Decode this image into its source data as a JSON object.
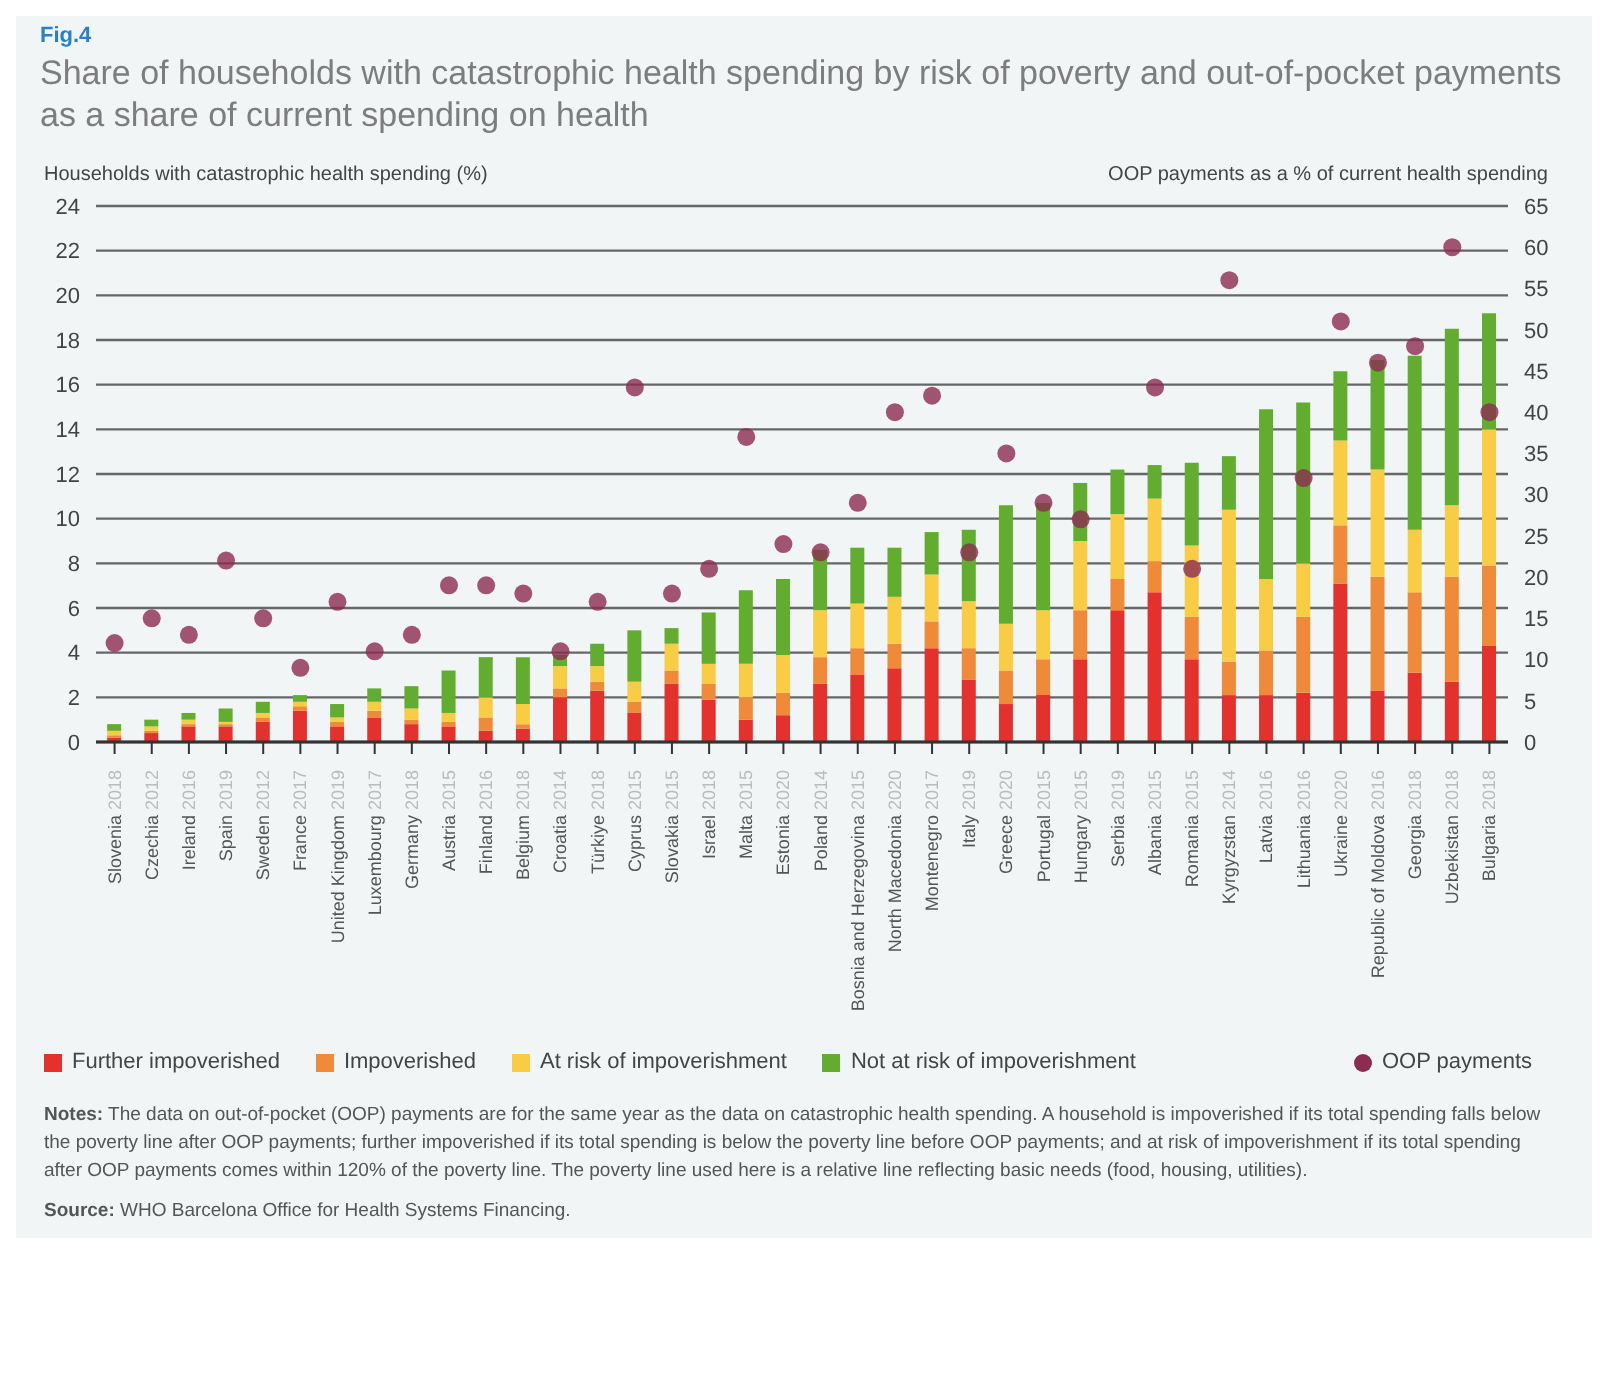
{
  "chart_data": {
    "type": "bar",
    "subtitle": "Fig.4",
    "title": "Share of households with catastrophic health spending by risk of poverty and out-of-pocket payments as a share of current spending on health",
    "ylabel": "Households with catastrophic health spending (%)",
    "y2label": "OOP payments as a % of current health spending",
    "categories": [
      "Slovenia 2018",
      "Czechia 2012",
      "Ireland 2016",
      "Spain 2019",
      "Sweden 2012",
      "France 2017",
      "United Kingdom 2019",
      "Luxembourg 2017",
      "Germany 2018",
      "Austria 2015",
      "Finland 2016",
      "Belgium 2018",
      "Croatia 2014",
      "Türkiye 2018",
      "Cyprus 2015",
      "Slovakia 2015",
      "Israel 2018",
      "Malta 2015",
      "Estonia 2020",
      "Poland 2014",
      "Bosnia and Herzegovina 2015",
      "North Macedonia 2020",
      "Montenegro 2017",
      "Italy 2019",
      "Greece 2020",
      "Portugal 2015",
      "Hungary 2015",
      "Serbia 2019",
      "Albania 2015",
      "Romania 2015",
      "Kyrgyzstan 2014",
      "Latvia 2016",
      "Lithuania 2016",
      "Ukraine 2020",
      "Republic of Moldova 2016",
      "Georgia 2018",
      "Uzbekistan 2018",
      "Bulgaria 2018"
    ],
    "stacked": true,
    "series": [
      {
        "name": "Further impoverished",
        "color": "#e3312d",
        "values": [
          0.2,
          0.4,
          0.7,
          0.7,
          0.9,
          1.4,
          0.7,
          1.1,
          0.8,
          0.7,
          0.5,
          0.6,
          2.0,
          2.3,
          1.3,
          2.6,
          1.9,
          1.0,
          1.2,
          2.6,
          3.0,
          3.3,
          4.2,
          2.8,
          1.7,
          2.1,
          3.7,
          5.9,
          6.7,
          3.7,
          2.1,
          2.1,
          2.2,
          7.1,
          2.3,
          3.1,
          2.7,
          4.3
        ]
      },
      {
        "name": "Impoverished",
        "color": "#ef8a3a",
        "values": [
          0.1,
          0.1,
          0.1,
          0.1,
          0.2,
          0.2,
          0.2,
          0.3,
          0.2,
          0.2,
          0.6,
          0.2,
          0.4,
          0.4,
          0.5,
          0.6,
          0.7,
          1.0,
          1.0,
          1.2,
          1.2,
          1.1,
          1.2,
          1.4,
          1.5,
          1.6,
          2.2,
          1.4,
          1.4,
          1.9,
          1.5,
          2.0,
          3.4,
          2.6,
          5.1,
          3.6,
          4.7,
          3.6
        ]
      },
      {
        "name": "At risk of impoverishment",
        "color": "#f8cd45",
        "values": [
          0.2,
          0.2,
          0.2,
          0.1,
          0.2,
          0.2,
          0.2,
          0.4,
          0.5,
          0.4,
          0.9,
          0.9,
          1.0,
          0.7,
          0.9,
          1.2,
          0.9,
          1.5,
          1.7,
          2.1,
          2.0,
          2.1,
          2.1,
          2.1,
          2.1,
          2.2,
          3.1,
          2.9,
          2.8,
          3.2,
          6.8,
          3.2,
          2.4,
          3.8,
          4.8,
          2.8,
          3.2,
          6.1
        ]
      },
      {
        "name": "Not at risk of impoverishment",
        "color": "#62ad2f",
        "values": [
          0.3,
          0.3,
          0.3,
          0.6,
          0.5,
          0.3,
          0.6,
          0.6,
          1.0,
          1.9,
          1.8,
          2.1,
          0.5,
          1.0,
          2.3,
          0.7,
          2.3,
          3.3,
          3.4,
          2.7,
          2.5,
          2.2,
          1.9,
          3.2,
          5.3,
          4.8,
          2.6,
          2.0,
          1.5,
          3.7,
          2.4,
          7.6,
          7.2,
          3.1,
          4.9,
          7.8,
          7.9,
          5.2
        ]
      },
      {
        "name": "OOP payments",
        "type": "scatter",
        "axis": "y2",
        "color": "#8c2c50",
        "values": [
          12,
          15,
          13,
          22,
          15,
          9,
          17,
          11,
          13,
          19,
          19,
          18,
          11,
          17,
          43,
          18,
          21,
          37,
          24,
          23,
          29,
          40,
          42,
          23,
          35,
          29,
          27,
          null,
          43,
          21,
          56,
          null,
          32,
          51,
          46,
          48,
          60,
          40
        ]
      }
    ],
    "ylim": [
      0,
      24
    ],
    "yticks": [
      0,
      2,
      4,
      6,
      8,
      10,
      12,
      14,
      16,
      18,
      20,
      22,
      24
    ],
    "y2lim": [
      0,
      65
    ],
    "y2ticks": [
      0,
      5,
      10,
      15,
      20,
      25,
      30,
      35,
      40,
      45,
      50,
      55,
      60,
      65
    ],
    "grid": "y",
    "legend": "bottom",
    "marker": "circle",
    "annotations": [
      "Notes: The data on out-of-pocket (OOP) payments are for the same year as the data on catastrophic health spending. A household is impoverished if its total spending falls below the poverty line after OOP payments; further impoverished if its total spending is below the poverty line before OOP payments; and at risk of impoverishment if its total spending after OOP payments comes within 120% of the poverty line. The poverty line used here is a relative line reflecting basic needs (food, housing, utilities).",
      "Source: WHO Barcelona Office for Health Systems Financing."
    ]
  }
}
